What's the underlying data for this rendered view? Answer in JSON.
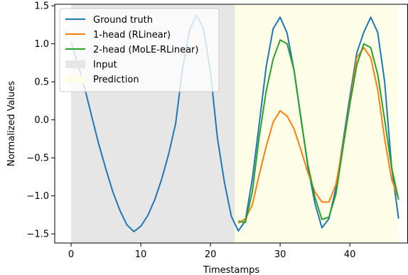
{
  "chart_data": {
    "type": "line",
    "xlabel": "Timestamps",
    "ylabel": "Normalized Values",
    "xlim": [
      -2.35,
      48.35
    ],
    "ylim": [
      -1.62,
      1.52
    ],
    "xticks": [
      0,
      10,
      20,
      30,
      40
    ],
    "yticks": [
      -1.5,
      -1.0,
      -0.5,
      0.0,
      0.5,
      1.0,
      1.5
    ],
    "ytick_labels": [
      "−1.5",
      "−1.0",
      "−0.5",
      "0.0",
      "0.5",
      "1.0",
      "1.5"
    ],
    "grid": false,
    "legend_position": "top-left",
    "regions": [
      {
        "name": "Input",
        "x_start": 0,
        "x_end": 23.5,
        "color": "#e6e6e6"
      },
      {
        "name": "Prediction",
        "x_start": 23.5,
        "x_end": 47,
        "color": "#fdfde8"
      }
    ],
    "series": [
      {
        "name": "Ground truth",
        "color": "#1f77b4",
        "x": [
          0,
          1,
          2,
          3,
          4,
          5,
          6,
          7,
          8,
          9,
          10,
          11,
          12,
          13,
          14,
          15,
          16,
          17,
          18,
          19,
          20,
          21,
          22,
          23,
          24,
          25,
          26,
          27,
          28,
          29,
          30,
          31,
          32,
          33,
          34,
          35,
          36,
          37,
          38,
          39,
          40,
          41,
          42,
          43,
          44,
          45,
          46,
          47
        ],
        "values": [
          1.02,
          0.73,
          0.4,
          0.03,
          -0.33,
          -0.65,
          -0.95,
          -1.19,
          -1.38,
          -1.47,
          -1.4,
          -1.26,
          -1.05,
          -0.78,
          -0.45,
          -0.05,
          0.68,
          1.18,
          1.38,
          1.2,
          0.63,
          -0.24,
          -0.82,
          -1.27,
          -1.46,
          -1.33,
          -0.78,
          -0.05,
          0.7,
          1.2,
          1.35,
          1.14,
          0.65,
          0.02,
          -0.63,
          -1.1,
          -1.42,
          -1.3,
          -0.9,
          -0.3,
          0.3,
          0.88,
          1.15,
          1.35,
          1.15,
          0.5,
          -0.62,
          -1.3
        ]
      },
      {
        "name": "1-head (RLinear)",
        "color": "#ff7f0e",
        "x": [
          24,
          25,
          26,
          27,
          28,
          29,
          30,
          31,
          32,
          33,
          34,
          35,
          36,
          37,
          38,
          39,
          40,
          41,
          42,
          43,
          44,
          45,
          46,
          47
        ],
        "values": [
          -1.36,
          -1.3,
          -1.12,
          -0.72,
          -0.35,
          -0.03,
          0.12,
          0.05,
          -0.12,
          -0.4,
          -0.7,
          -0.95,
          -1.08,
          -1.08,
          -0.85,
          -0.35,
          0.22,
          0.82,
          0.95,
          0.82,
          0.4,
          -0.25,
          -0.78,
          -1.04
        ]
      },
      {
        "name": "2-head (MoLE-RLinear)",
        "color": "#2ca02c",
        "x": [
          24,
          25,
          26,
          27,
          28,
          29,
          30,
          31,
          32,
          33,
          34,
          35,
          36,
          37,
          38,
          39,
          40,
          41,
          42,
          43,
          44,
          45,
          46,
          47
        ],
        "values": [
          -1.33,
          -1.35,
          -0.95,
          -0.22,
          0.38,
          0.8,
          1.05,
          1.0,
          0.65,
          0.0,
          -0.6,
          -1.02,
          -1.31,
          -1.28,
          -0.98,
          -0.38,
          0.2,
          0.72,
          1.0,
          0.95,
          0.6,
          0.0,
          -0.63,
          -1.05
        ]
      }
    ]
  }
}
